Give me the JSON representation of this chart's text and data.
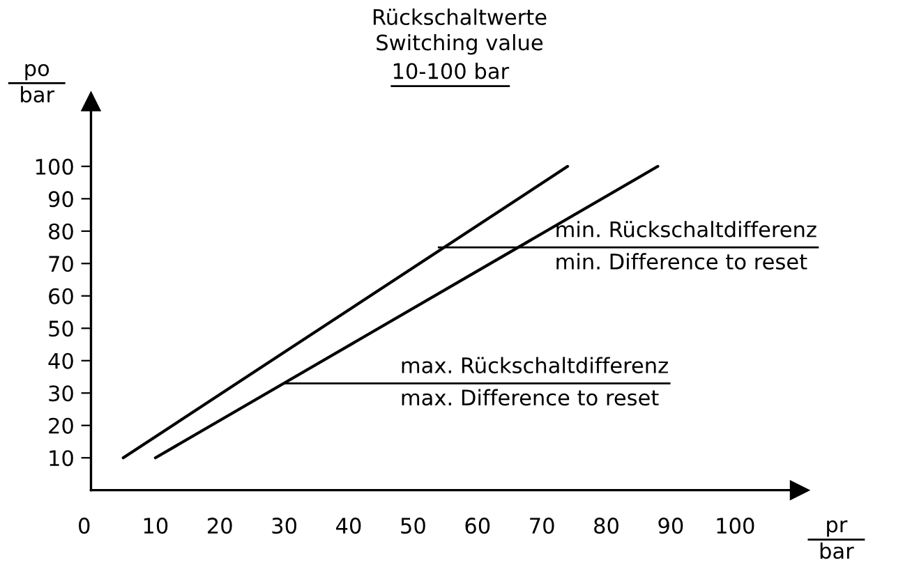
{
  "chart_data": {
    "type": "line",
    "title": "Rückschaltwerte\nSwitching value",
    "subtitle": "10-100 bar",
    "xlabel": "pr\nbar",
    "ylabel": "po\nbar",
    "series": [
      {
        "color": "#000000",
        "x": [
          5,
          74
        ],
        "values": [
          10,
          100
        ]
      },
      {
        "color": "#000000",
        "x": [
          10,
          88
        ],
        "values": [
          10,
          100
        ]
      }
    ],
    "annotations": [
      {
        "text": "min. Rückschaltdifferenz\nmin. Difference to reset",
        "x": 54,
        "y": 75
      },
      {
        "text": "max. Rückschaltdifferenz\nmax. Difference to reset",
        "x": 30,
        "y": 33
      }
    ],
    "xlim": [
      0,
      110
    ],
    "ylim": [
      0,
      120
    ],
    "xticks": [
      0,
      10,
      20,
      30,
      40,
      50,
      60,
      70,
      80,
      90,
      100
    ],
    "yticks": [
      10,
      20,
      30,
      40,
      50,
      60,
      70,
      80,
      90,
      100
    ],
    "grid": false,
    "legend": false,
    "marker": "none",
    "line_style": "solid"
  }
}
